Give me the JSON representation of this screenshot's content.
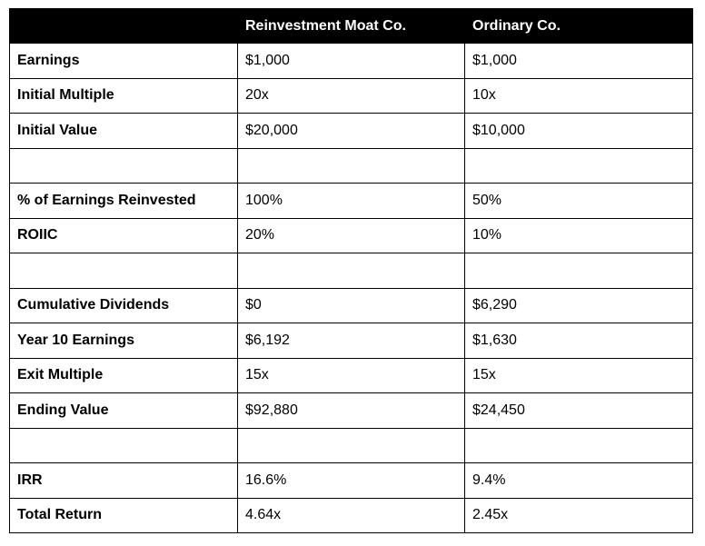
{
  "table": {
    "columns": [
      "Reinvestment Moat Co.",
      "Ordinary Co."
    ],
    "rows": [
      [
        "Earnings",
        "$1,000",
        "$1,000"
      ],
      [
        "Initial Multiple",
        "20x",
        "10x"
      ],
      [
        "Initial Value",
        "$20,000",
        "$10,000"
      ],
      null,
      [
        "% of Earnings Reinvested",
        "100%",
        "50%"
      ],
      [
        "ROIIC",
        "20%",
        "10%"
      ],
      null,
      [
        "Cumulative Dividends",
        "$0",
        "$6,290"
      ],
      [
        "Year 10 Earnings",
        "$6,192",
        "$1,630"
      ],
      [
        "Exit Multiple",
        "15x",
        "15x"
      ],
      [
        "Ending Value",
        "$92,880",
        "$24,450"
      ],
      null,
      [
        "IRR",
        "16.6%",
        "9.4%"
      ],
      [
        "Total Return",
        "4.64x",
        "2.45x"
      ]
    ]
  }
}
